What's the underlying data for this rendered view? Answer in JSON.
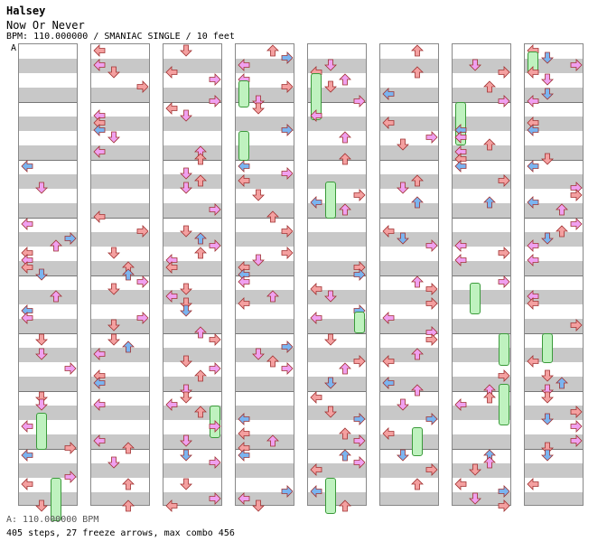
{
  "header": {
    "artist": "Halsey",
    "title": "Now Or Never",
    "meta": "BPM: 110.000000 / SMANIAC SINGLE / 10 feet",
    "bpm_marker": "A"
  },
  "footer": {
    "bpm": "A: 110.000000 BPM",
    "stats": "405 steps, 27 freeze arrows, max combo 456"
  },
  "colors": {
    "quarter": "#f4a0a0",
    "eighth": "#7ab4f0",
    "sixteenth": "#f0a0f0",
    "freeze": "#bff2bf",
    "mine": "#40c040"
  },
  "icons": {
    "left": "left-arrow-icon",
    "down": "down-arrow-icon",
    "up": "up-arrow-icon",
    "right": "right-arrow-icon"
  }
}
